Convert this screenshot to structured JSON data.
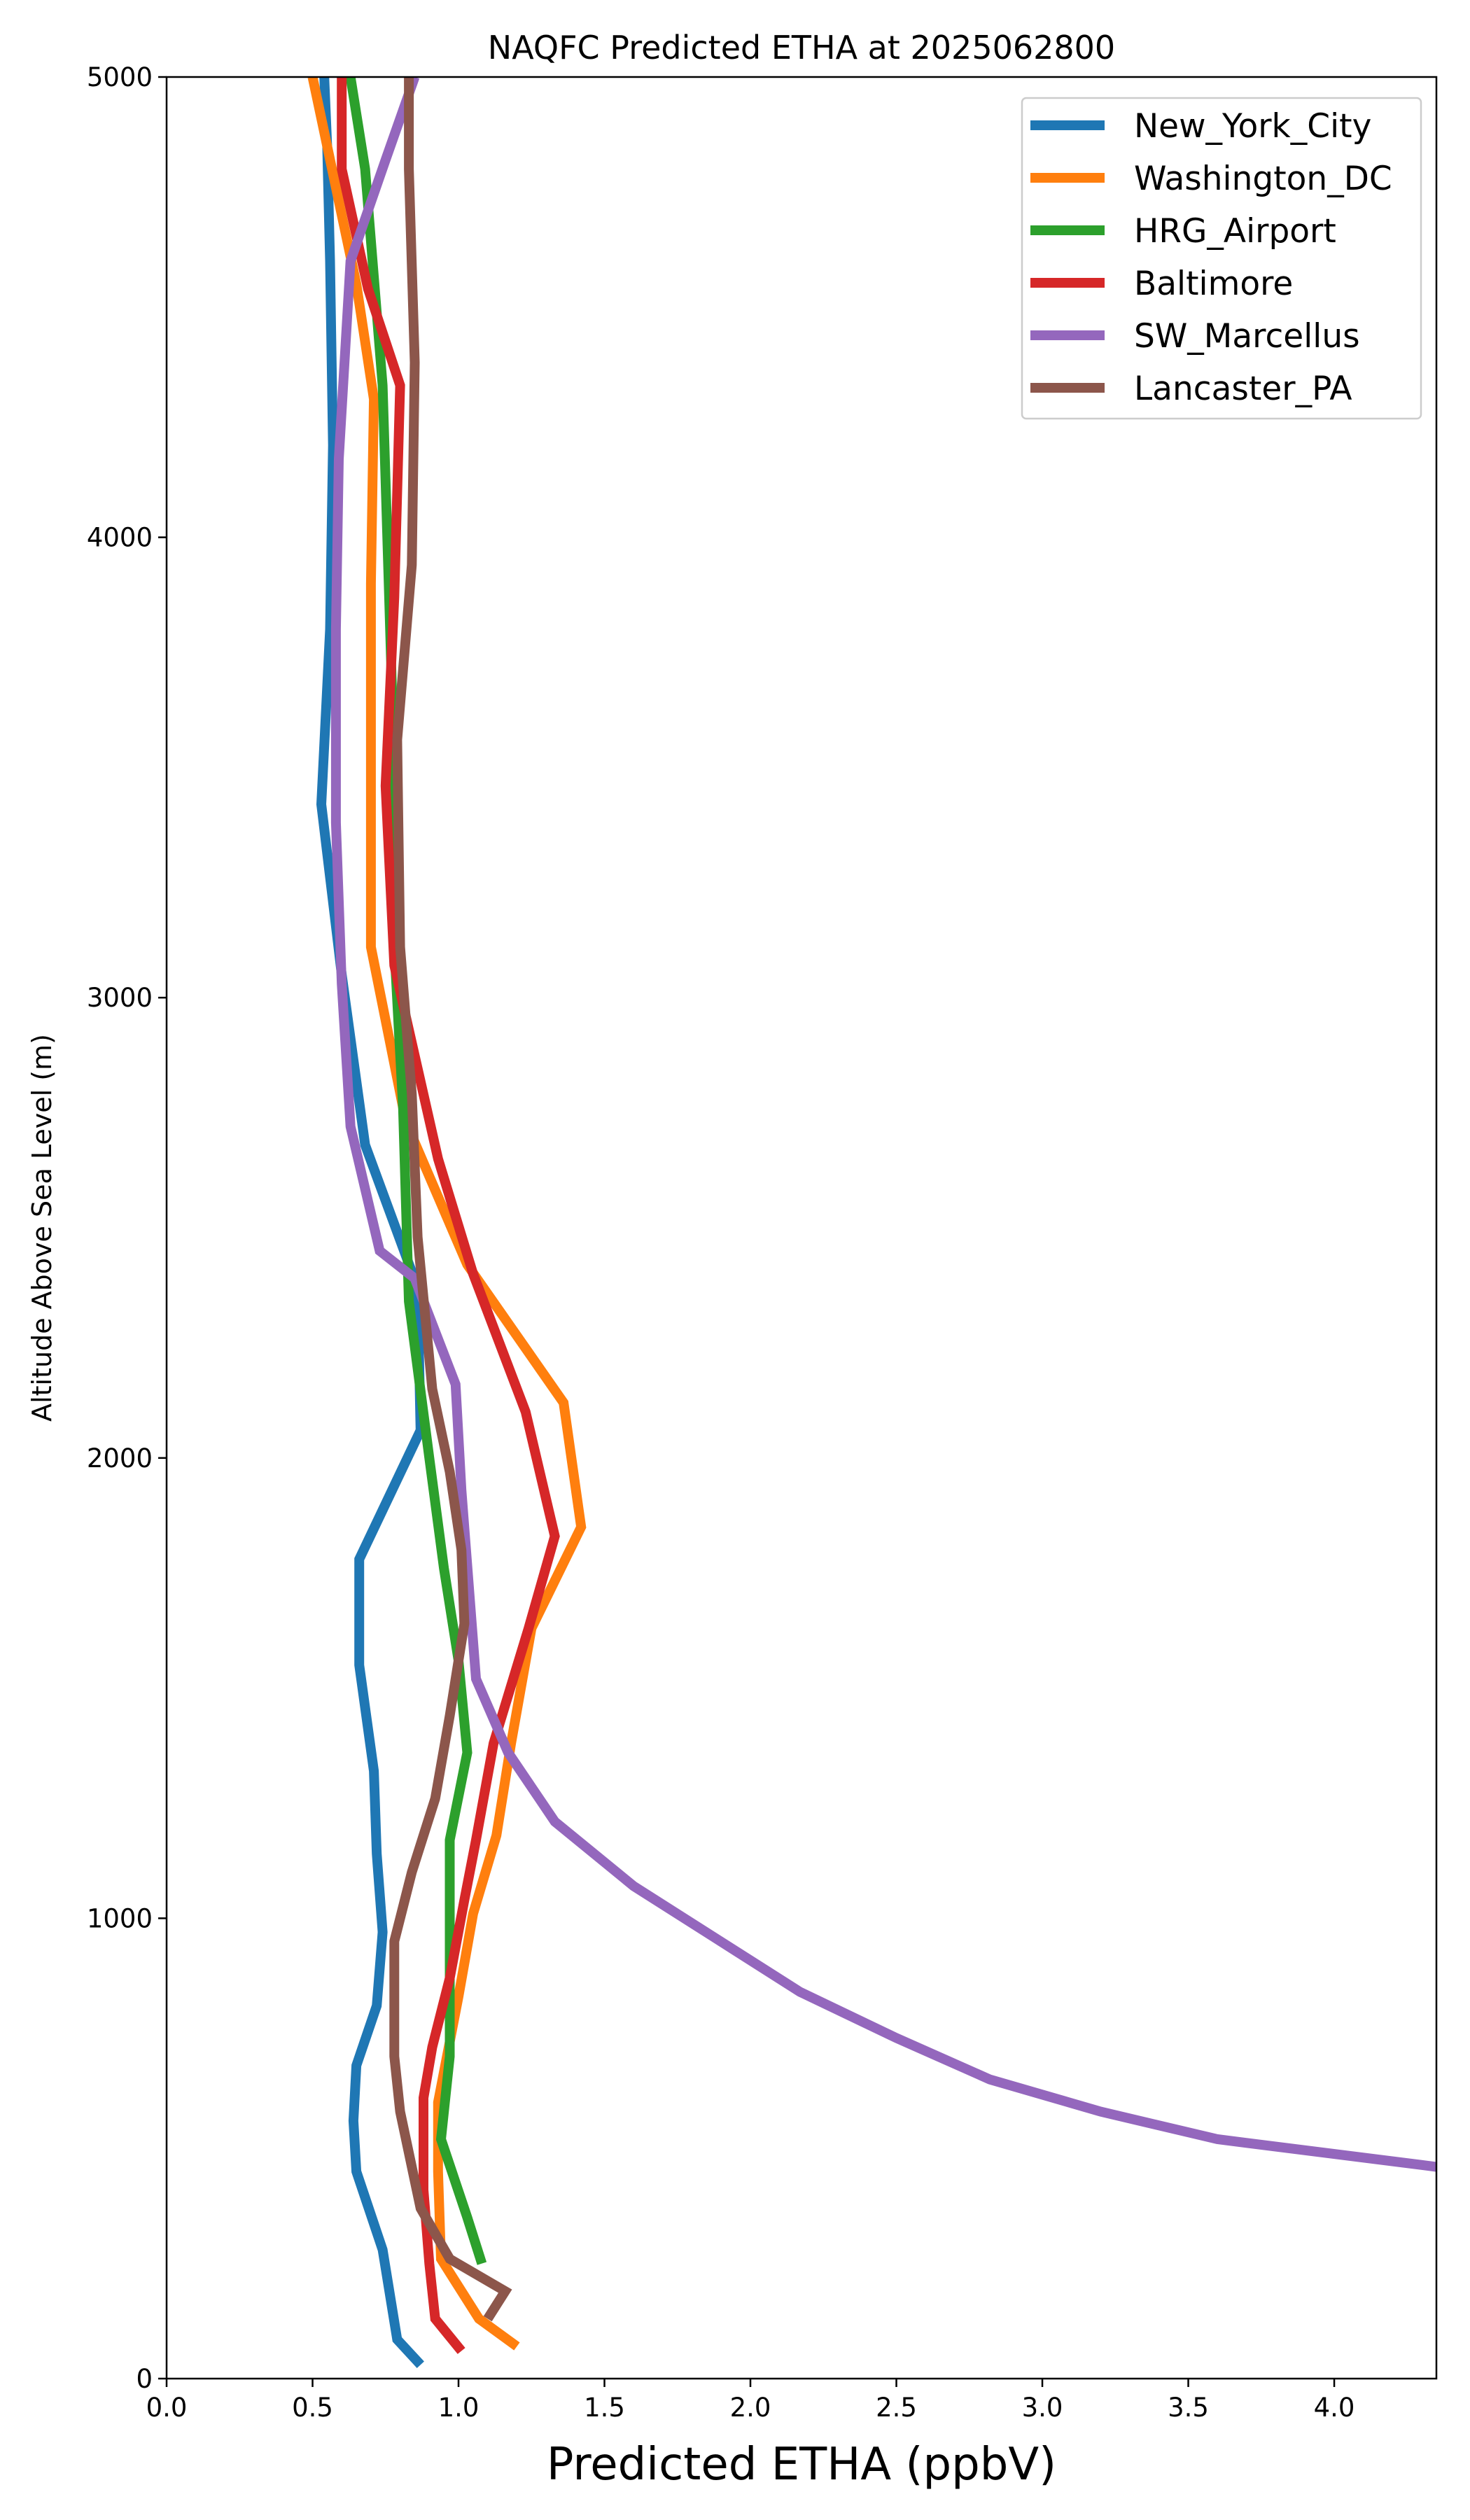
{
  "chart_data": {
    "type": "line",
    "title": "NAQFC Predicted ETHA at 2025062800",
    "xlabel": "Predicted ETHA (ppbV)",
    "ylabel": "Altitude Above Sea Level (m)",
    "xlim": [
      0.0,
      4.35
    ],
    "ylim": [
      0,
      5000
    ],
    "xticks": [
      "0.0",
      "0.5",
      "1.0",
      "1.5",
      "2.0",
      "2.5",
      "3.0",
      "3.5",
      "4.0"
    ],
    "xtick_values": [
      0.0,
      0.5,
      1.0,
      1.5,
      2.0,
      2.5,
      3.0,
      3.5,
      4.0
    ],
    "yticks": [
      "0",
      "1000",
      "2000",
      "3000",
      "4000",
      "5000"
    ],
    "ytick_values": [
      0,
      1000,
      2000,
      3000,
      4000,
      5000
    ],
    "grid": false,
    "legend_position": "top-right",
    "series": [
      {
        "name": "New_York_City",
        "color": "#1f77b4",
        "points": [
          [
            0.87,
            30
          ],
          [
            0.79,
            85
          ],
          [
            0.74,
            280
          ],
          [
            0.65,
            450
          ],
          [
            0.64,
            560
          ],
          [
            0.65,
            680
          ],
          [
            0.72,
            810
          ],
          [
            0.74,
            970
          ],
          [
            0.72,
            1140
          ],
          [
            0.71,
            1320
          ],
          [
            0.66,
            1550
          ],
          [
            0.66,
            1780
          ],
          [
            0.87,
            2060
          ],
          [
            0.86,
            2370
          ],
          [
            0.68,
            2680
          ],
          [
            0.6,
            3050
          ],
          [
            0.53,
            3420
          ],
          [
            0.56,
            3800
          ],
          [
            0.57,
            4200
          ],
          [
            0.56,
            4600
          ],
          [
            0.55,
            4850
          ],
          [
            0.54,
            5000
          ]
        ]
      },
      {
        "name": "Washington_DC",
        "color": "#ff7f0e",
        "points": [
          [
            1.2,
            70
          ],
          [
            1.07,
            130
          ],
          [
            0.94,
            260
          ],
          [
            0.93,
            450
          ],
          [
            0.93,
            600
          ],
          [
            1.0,
            830
          ],
          [
            1.05,
            1010
          ],
          [
            1.13,
            1180
          ],
          [
            1.18,
            1380
          ],
          [
            1.25,
            1630
          ],
          [
            1.42,
            1850
          ],
          [
            1.36,
            2120
          ],
          [
            1.03,
            2420
          ],
          [
            0.82,
            2730
          ],
          [
            0.7,
            3110
          ],
          [
            0.7,
            3450
          ],
          [
            0.7,
            3900
          ],
          [
            0.71,
            4300
          ],
          [
            0.65,
            4550
          ],
          [
            0.57,
            4790
          ],
          [
            0.5,
            5000
          ]
        ]
      },
      {
        "name": "HRG_Airport",
        "color": "#2ca02c",
        "points": [
          [
            1.08,
            250
          ],
          [
            1.03,
            350
          ],
          [
            0.94,
            520
          ],
          [
            0.97,
            700
          ],
          [
            0.97,
            1000
          ],
          [
            0.97,
            1170
          ],
          [
            1.03,
            1360
          ],
          [
            1.0,
            1560
          ],
          [
            0.95,
            1760
          ],
          [
            0.9,
            2000
          ],
          [
            0.83,
            2340
          ],
          [
            0.81,
            2760
          ],
          [
            0.78,
            3110
          ],
          [
            0.78,
            3500
          ],
          [
            0.76,
            3920
          ],
          [
            0.74,
            4330
          ],
          [
            0.68,
            4800
          ],
          [
            0.63,
            5000
          ]
        ]
      },
      {
        "name": "Baltimore",
        "color": "#d62728",
        "points": [
          [
            1.01,
            60
          ],
          [
            0.92,
            130
          ],
          [
            0.9,
            250
          ],
          [
            0.88,
            410
          ],
          [
            0.88,
            610
          ],
          [
            0.91,
            720
          ],
          [
            0.97,
            870
          ],
          [
            1.02,
            1040
          ],
          [
            1.06,
            1170
          ],
          [
            1.12,
            1380
          ],
          [
            1.24,
            1630
          ],
          [
            1.33,
            1830
          ],
          [
            1.23,
            2100
          ],
          [
            1.05,
            2400
          ],
          [
            0.93,
            2650
          ],
          [
            0.78,
            3070
          ],
          [
            0.75,
            3460
          ],
          [
            0.78,
            3870
          ],
          [
            0.8,
            4330
          ],
          [
            0.69,
            4540
          ],
          [
            0.6,
            4800
          ],
          [
            0.6,
            5000
          ]
        ]
      },
      {
        "name": "SW_Marcellus",
        "color": "#9467bd",
        "points": [
          [
            4.35,
            460
          ],
          [
            3.6,
            520
          ],
          [
            3.2,
            580
          ],
          [
            2.82,
            650
          ],
          [
            2.5,
            740
          ],
          [
            2.17,
            840
          ],
          [
            1.6,
            1070
          ],
          [
            1.33,
            1210
          ],
          [
            1.17,
            1360
          ],
          [
            1.06,
            1520
          ],
          [
            1.01,
            1930
          ],
          [
            0.99,
            2160
          ],
          [
            0.85,
            2390
          ],
          [
            0.73,
            2450
          ],
          [
            0.63,
            2720
          ],
          [
            0.6,
            3030
          ],
          [
            0.58,
            3380
          ],
          [
            0.58,
            3800
          ],
          [
            0.59,
            4170
          ],
          [
            0.63,
            4600
          ],
          [
            0.75,
            4820
          ],
          [
            0.85,
            5000
          ]
        ]
      },
      {
        "name": "Lancaster_PA",
        "color": "#8c564b",
        "points": [
          [
            1.1,
            130
          ],
          [
            1.16,
            190
          ],
          [
            0.97,
            260
          ],
          [
            0.87,
            370
          ],
          [
            0.8,
            580
          ],
          [
            0.78,
            700
          ],
          [
            0.78,
            950
          ],
          [
            0.84,
            1100
          ],
          [
            0.92,
            1260
          ],
          [
            0.97,
            1440
          ],
          [
            1.02,
            1640
          ],
          [
            1.01,
            1800
          ],
          [
            0.97,
            1970
          ],
          [
            0.91,
            2150
          ],
          [
            0.86,
            2480
          ],
          [
            0.84,
            2790
          ],
          [
            0.8,
            3110
          ],
          [
            0.79,
            3560
          ],
          [
            0.84,
            3940
          ],
          [
            0.85,
            4380
          ],
          [
            0.83,
            4800
          ],
          [
            0.83,
            5000
          ]
        ]
      }
    ]
  }
}
